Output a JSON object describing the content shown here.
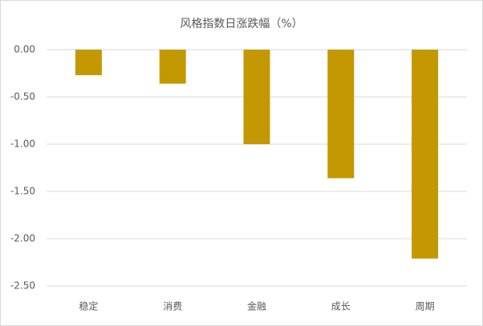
{
  "chart_data": {
    "type": "bar",
    "title": "风格指数日涨跌幅（%）",
    "categories": [
      "稳定",
      "消费",
      "金融",
      "成长",
      "周期"
    ],
    "values": [
      -0.27,
      -0.36,
      -1.0,
      -1.36,
      -2.21
    ],
    "color": "#c39800",
    "ylim": [
      -2.5,
      0
    ],
    "yticks": [
      {
        "value": 0,
        "label": "0.00"
      },
      {
        "value": -0.5,
        "label": "-0.50"
      },
      {
        "value": -1,
        "label": "-1.00"
      },
      {
        "value": -1.5,
        "label": "-1.50"
      },
      {
        "value": -2,
        "label": "-2.00"
      },
      {
        "value": -2.5,
        "label": "-2.50"
      }
    ],
    "grid": true
  }
}
